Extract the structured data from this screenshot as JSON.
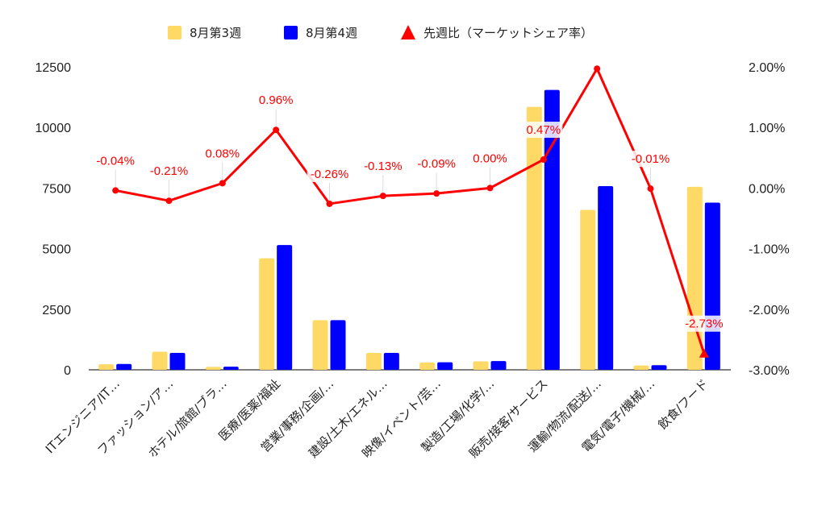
{
  "chart_data": {
    "type": "bar",
    "categories": [
      "ITエンジニア/IT…",
      "ファッション/ア…",
      "ホテル/旅館/ブラ…",
      "医療/医薬/福祉",
      "営業/事務/企画/…",
      "建設/土木/エネル…",
      "映像/イベント/芸…",
      "製造/工場/化学/…",
      "販売/接客/サービス",
      "運輸/物流/配送/…",
      "電気/電子/機械/…",
      "飲食/フード"
    ],
    "series": [
      {
        "name": "8月第3週",
        "type": "bar",
        "axis": "left",
        "color": "#ffd966",
        "values": [
          230,
          750,
          120,
          4600,
          2050,
          700,
          300,
          350,
          10850,
          6600,
          180,
          7550
        ]
      },
      {
        "name": "8月第4週",
        "type": "bar",
        "axis": "left",
        "color": "#0000ff",
        "values": [
          240,
          700,
          130,
          5150,
          2050,
          700,
          310,
          360,
          11550,
          7580,
          190,
          6900
        ]
      },
      {
        "name": "先週比（マーケットシェア率）",
        "type": "line",
        "axis": "right",
        "color": "#ff0000",
        "values": [
          -0.04,
          -0.21,
          0.08,
          0.96,
          -0.26,
          -0.13,
          -0.09,
          0.0,
          0.47,
          1.97,
          -0.01,
          -2.73
        ],
        "labels": [
          "-0.04%",
          "-0.21%",
          "0.08%",
          "0.96%",
          "-0.26%",
          "-0.13%",
          "-0.09%",
          "0.00%",
          "0.47%",
          "",
          "-0.01%",
          "-2.73%"
        ]
      }
    ],
    "y_left": {
      "ylim": [
        0,
        12500
      ],
      "ticks": [
        "0",
        "2500",
        "5000",
        "7500",
        "10000",
        "12500"
      ]
    },
    "y_right": {
      "ylim": [
        -3,
        2
      ],
      "ticks": [
        "-3.00%",
        "-2.00%",
        "-1.00%",
        "0.00%",
        "1.00%",
        "2.00%"
      ]
    },
    "legend_position": "top-center",
    "grid": false
  }
}
